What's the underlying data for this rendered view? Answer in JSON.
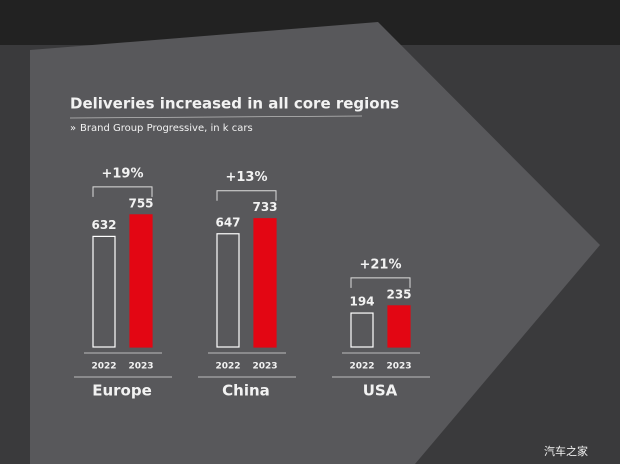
{
  "chart_data": {
    "type": "bar",
    "title": "Deliveries increased in all core regions",
    "subtitle": "Brand Group Progressive, in k cars",
    "categories": [
      "Europe",
      "China",
      "USA"
    ],
    "series": [
      {
        "name": "2022",
        "color": "#ffffff",
        "fill": false,
        "values": [
          632,
          647,
          194
        ]
      },
      {
        "name": "2023",
        "color": "#e30613",
        "fill": true,
        "values": [
          755,
          733,
          235
        ]
      }
    ],
    "annotations": [
      "+19%",
      "+13%",
      "+21%"
    ]
  },
  "watermark": "汽车之家"
}
